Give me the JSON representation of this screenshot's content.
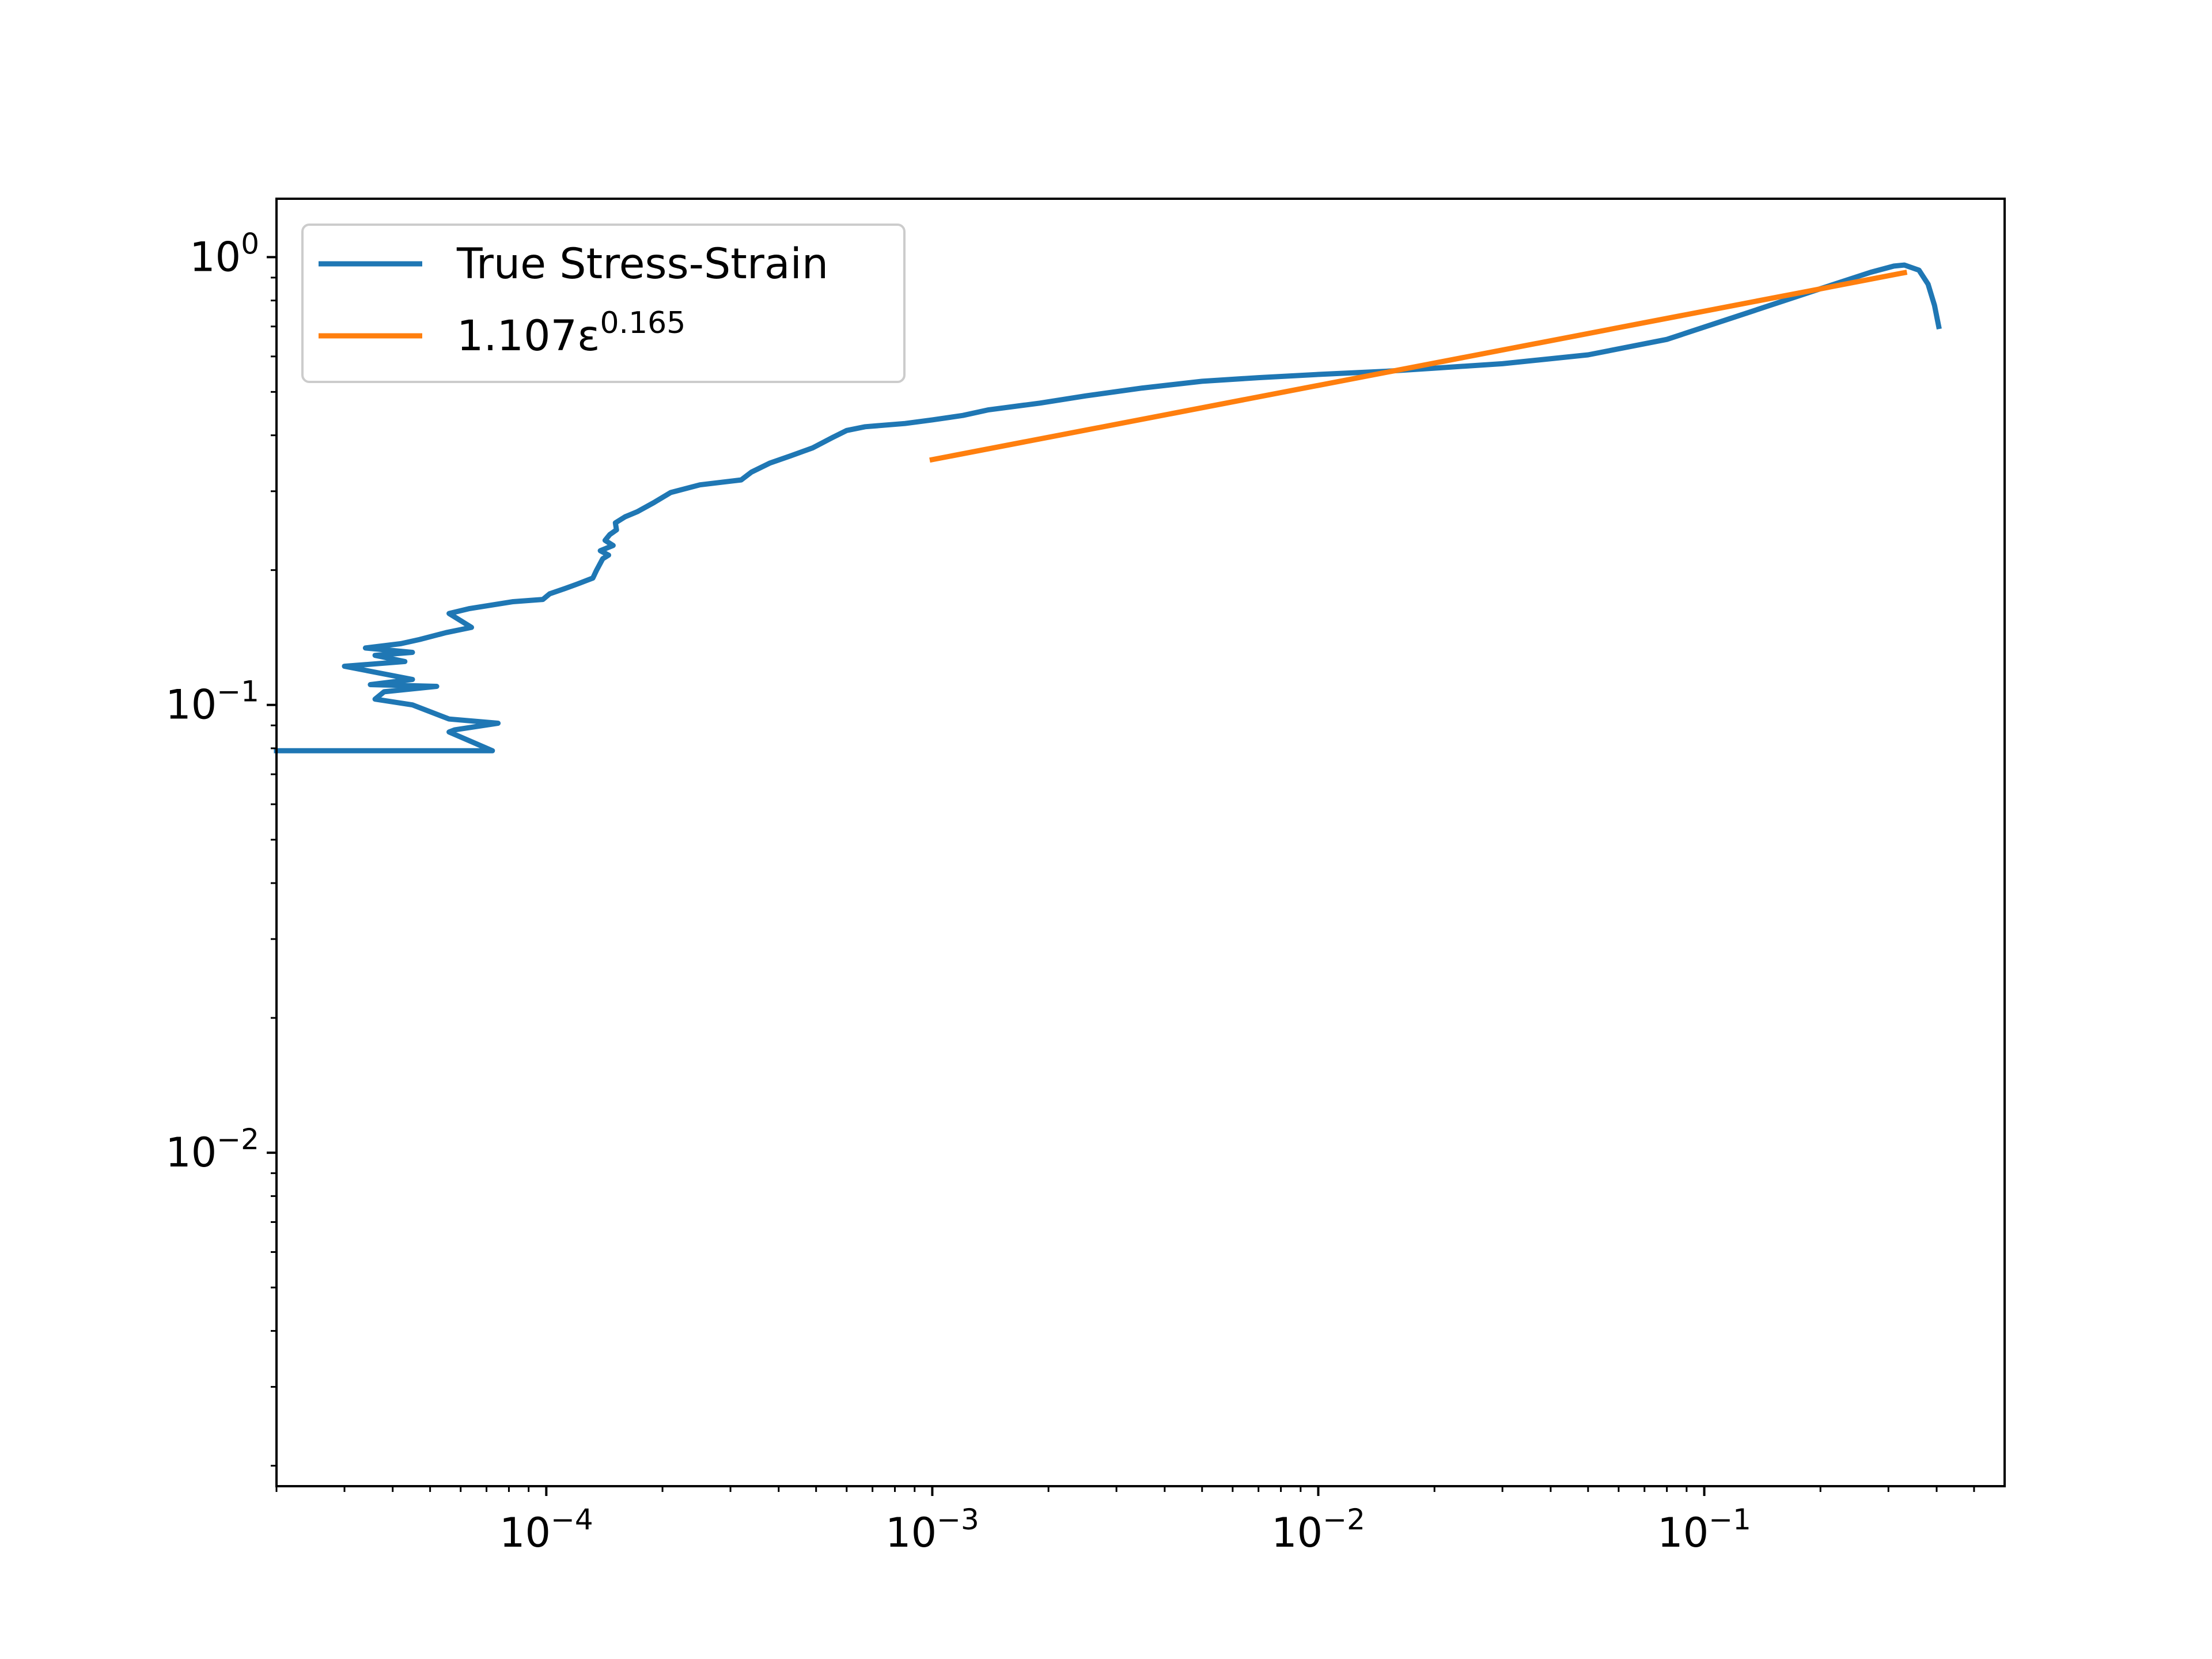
{
  "chart_data": {
    "type": "line",
    "title": "",
    "xlabel": "",
    "ylabel": "",
    "xscale": "log",
    "yscale": "log",
    "xlim": [
      2e-05,
      0.6
    ],
    "ylim": [
      0.0018,
      1.35
    ],
    "grid": false,
    "legend_position": "upper left",
    "x_tick_labels": [
      {
        "value": 0.0001,
        "base": "10",
        "exp": "−4"
      },
      {
        "value": 0.001,
        "base": "10",
        "exp": "−3"
      },
      {
        "value": 0.01,
        "base": "10",
        "exp": "−2"
      },
      {
        "value": 0.1,
        "base": "10",
        "exp": "−1"
      }
    ],
    "y_tick_labels": [
      {
        "value": 0.01,
        "base": "10",
        "exp": "−2"
      },
      {
        "value": 0.1,
        "base": "10",
        "exp": "−1"
      },
      {
        "value": 1,
        "base": "10",
        "exp": "0"
      }
    ],
    "series": [
      {
        "name": "True Stress-Strain",
        "legend": {
          "text": "True Stress-Strain"
        },
        "color": "#1f77b4",
        "points": [
          [
            2e-05,
            0.079
          ],
          [
            7.25e-05,
            0.079
          ],
          [
            5.6e-05,
            0.087
          ],
          [
            5.8e-05,
            0.088
          ],
          [
            7.5e-05,
            0.091
          ],
          [
            5.6e-05,
            0.093
          ],
          [
            4.5e-05,
            0.1
          ],
          [
            3.6e-05,
            0.103
          ],
          [
            3.8e-05,
            0.107
          ],
          [
            5.2e-05,
            0.11
          ],
          [
            3.5e-05,
            0.111
          ],
          [
            4.5e-05,
            0.114
          ],
          [
            3e-05,
            0.122
          ],
          [
            4.3e-05,
            0.125
          ],
          [
            3.6e-05,
            0.129
          ],
          [
            4.5e-05,
            0.131
          ],
          [
            3.4e-05,
            0.134
          ],
          [
            4.2e-05,
            0.137
          ],
          [
            4.7e-05,
            0.14
          ],
          [
            5.5e-05,
            0.145
          ],
          [
            6.4e-05,
            0.149
          ],
          [
            5.6e-05,
            0.16
          ],
          [
            6.3e-05,
            0.164
          ],
          [
            8.2e-05,
            0.17
          ],
          [
            9.8e-05,
            0.172
          ],
          [
            0.000102,
            0.177
          ],
          [
            0.000112,
            0.182
          ],
          [
            0.00012,
            0.186
          ],
          [
            0.000132,
            0.192
          ],
          [
            0.000135,
            0.2
          ],
          [
            0.00014,
            0.212
          ],
          [
            0.000145,
            0.216
          ],
          [
            0.000138,
            0.221
          ],
          [
            0.000149,
            0.227
          ],
          [
            0.000142,
            0.233
          ],
          [
            0.000146,
            0.24
          ],
          [
            0.000152,
            0.246
          ],
          [
            0.000151,
            0.255
          ],
          [
            0.00016,
            0.263
          ],
          [
            0.000172,
            0.27
          ],
          [
            0.00019,
            0.283
          ],
          [
            0.00021,
            0.298
          ],
          [
            0.00025,
            0.31
          ],
          [
            0.00032,
            0.318
          ],
          [
            0.00034,
            0.331
          ],
          [
            0.00038,
            0.347
          ],
          [
            0.00043,
            0.36
          ],
          [
            0.00049,
            0.375
          ],
          [
            0.00055,
            0.395
          ],
          [
            0.0006,
            0.41
          ],
          [
            0.00067,
            0.418
          ],
          [
            0.00085,
            0.425
          ],
          [
            0.001,
            0.433
          ],
          [
            0.0012,
            0.443
          ],
          [
            0.0014,
            0.456
          ],
          [
            0.0019,
            0.472
          ],
          [
            0.0025,
            0.49
          ],
          [
            0.0035,
            0.51
          ],
          [
            0.005,
            0.528
          ],
          [
            0.007,
            0.538
          ],
          [
            0.01,
            0.547
          ],
          [
            0.015,
            0.556
          ],
          [
            0.02,
            0.565
          ],
          [
            0.03,
            0.578
          ],
          [
            0.05,
            0.605
          ],
          [
            0.08,
            0.655
          ],
          [
            0.12,
            0.735
          ],
          [
            0.2,
            0.85
          ],
          [
            0.27,
            0.925
          ],
          [
            0.31,
            0.955
          ],
          [
            0.33,
            0.96
          ],
          [
            0.36,
            0.935
          ],
          [
            0.38,
            0.87
          ],
          [
            0.395,
            0.78
          ],
          [
            0.405,
            0.7
          ]
        ]
      },
      {
        "name": "1.107ε^0.165",
        "legend": {
          "base": "1.107ε",
          "sup": "0.165"
        },
        "color": "#ff7f0e",
        "points": [
          [
            0.001,
            0.353
          ],
          [
            0.33,
            0.923
          ]
        ]
      }
    ]
  }
}
